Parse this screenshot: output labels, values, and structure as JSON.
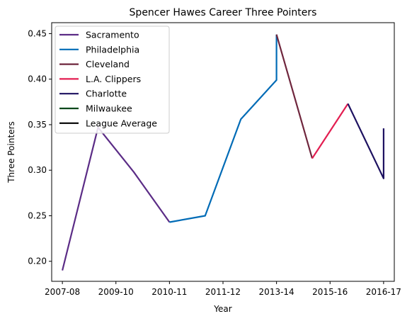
{
  "chart_data": {
    "type": "line",
    "title": "Spencer Hawes Career Three Pointers",
    "xlabel": "Year",
    "ylabel": "Three Pointers",
    "xticks": [
      "2007-08",
      "2009-10",
      "2010-11",
      "2011-12",
      "2013-14",
      "2015-16",
      "2016-17"
    ],
    "yticks": [
      "0.20",
      "0.25",
      "0.30",
      "0.35",
      "0.40",
      "0.45"
    ],
    "ylim": [
      0.178,
      0.462
    ],
    "xlim": [
      -0.3,
      9.3
    ],
    "legend_position": "top-left",
    "grid": false,
    "series": [
      {
        "name": "Sacramento",
        "color": "#5b2c86",
        "points": [
          [
            0,
            0.19
          ],
          [
            1,
            0.347
          ],
          [
            2,
            0.298
          ],
          [
            3,
            0.243
          ]
        ]
      },
      {
        "name": "Philadelphia",
        "color": "#006bb6",
        "points": [
          [
            3,
            0.243
          ],
          [
            4,
            0.25
          ],
          [
            5,
            0.356
          ],
          [
            6,
            0.399
          ],
          [
            6,
            0.449
          ]
        ]
      },
      {
        "name": "Cleveland",
        "color": "#6f263d",
        "points": [
          [
            6,
            0.449
          ],
          [
            7,
            0.313
          ]
        ]
      },
      {
        "name": "L.A. Clippers",
        "color": "#e31e51",
        "points": [
          [
            7,
            0.313
          ],
          [
            8,
            0.373
          ]
        ]
      },
      {
        "name": "Charlotte",
        "color": "#1d1160",
        "points": [
          [
            8,
            0.373
          ],
          [
            9,
            0.291
          ],
          [
            9,
            0.346
          ]
        ]
      },
      {
        "name": "Milwaukee",
        "color": "#00471b",
        "points": []
      },
      {
        "name": "League Average",
        "color": "#000000",
        "points": []
      }
    ]
  }
}
